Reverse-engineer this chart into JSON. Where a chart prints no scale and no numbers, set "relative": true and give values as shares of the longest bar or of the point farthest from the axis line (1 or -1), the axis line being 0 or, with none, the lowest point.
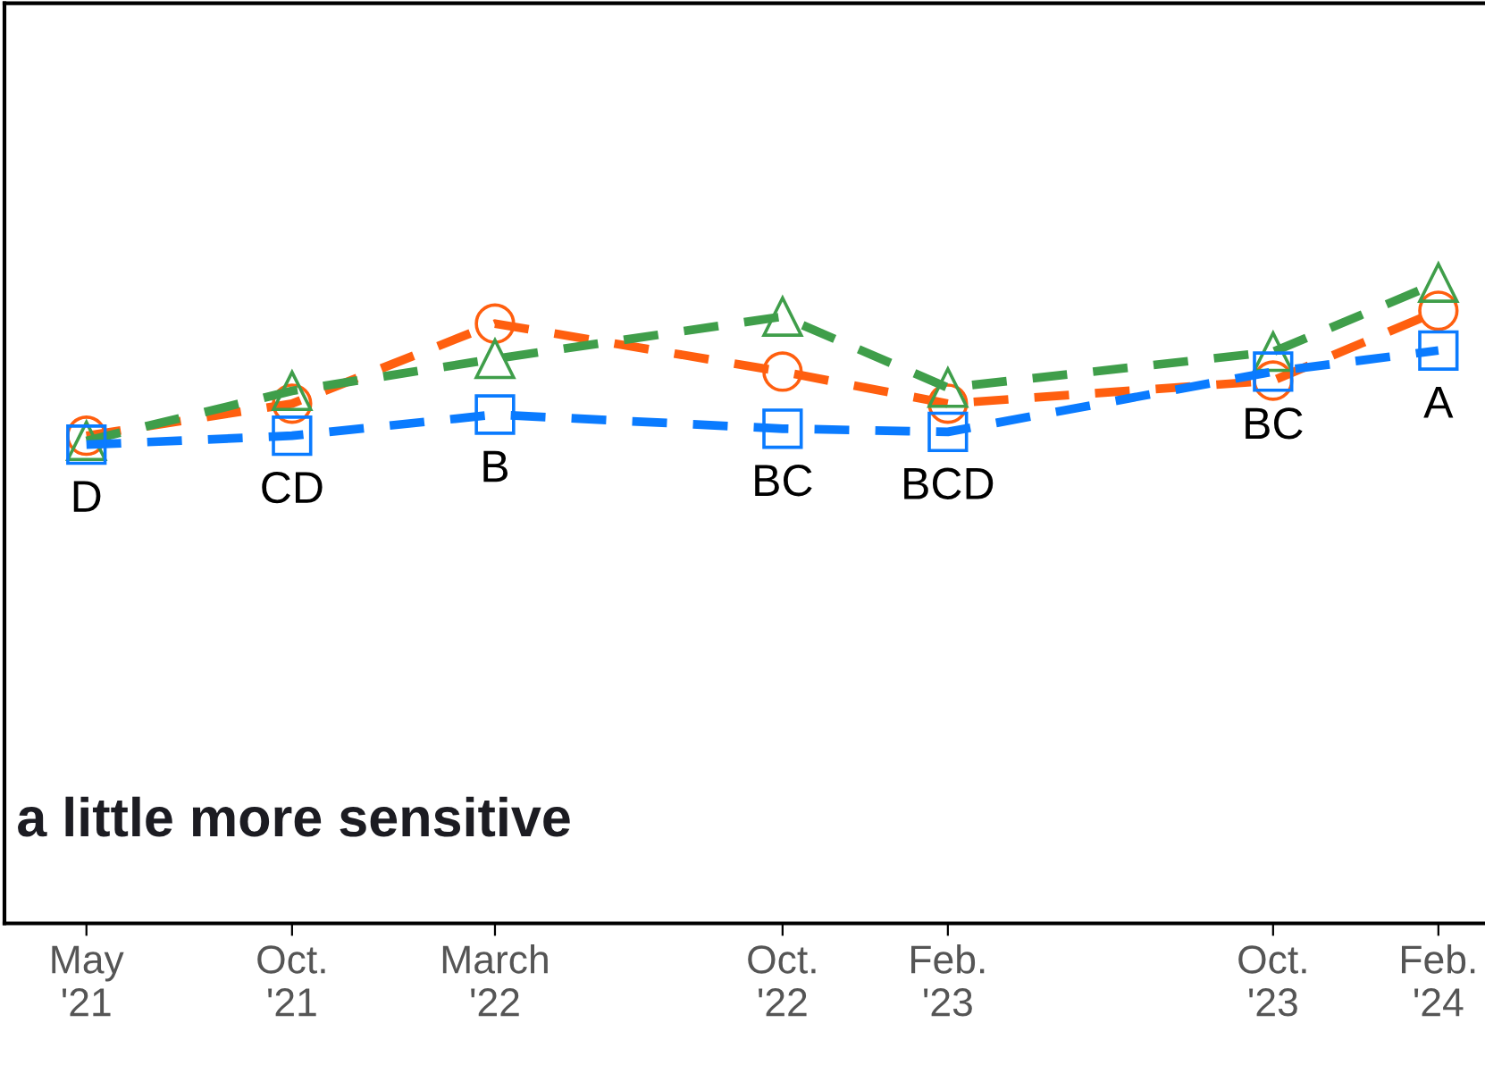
{
  "chart_data": {
    "type": "line",
    "relative": true,
    "line_style": "dashed",
    "legend": false,
    "grid": false,
    "tick_labels": "x",
    "x": [
      "2021-05",
      "2021-10",
      "2022-03",
      "2022-10",
      "2023-02",
      "2023-10",
      "2024-02"
    ],
    "xlim": [
      "2021-03",
      "2024-03-10"
    ],
    "xticks": [
      {
        "value": "2021-05",
        "label": "May\n'21"
      },
      {
        "value": "2021-10",
        "label": "Oct.\n'21"
      },
      {
        "value": "2022-03",
        "label": "March\n'22"
      },
      {
        "value": "2022-10",
        "label": "Oct.\n'22"
      },
      {
        "value": "2023-02",
        "label": "Feb.\n'23"
      },
      {
        "value": "2023-10",
        "label": "Oct.\n'23"
      },
      {
        "value": "2024-02",
        "label": "Feb.\n'24"
      }
    ],
    "series": [
      {
        "color": "#ff5f0f",
        "marker": "circle",
        "values": [
          0.761,
          0.811,
          0.936,
          0.861,
          0.811,
          0.847,
          0.956
        ]
      },
      {
        "color": "#3f9e4a",
        "marker": "triangle",
        "values": [
          0.753,
          0.831,
          0.881,
          0.947,
          0.836,
          0.892,
          1
        ]
      },
      {
        "color": "#0a7bff",
        "marker": "square",
        "values": [
          0.747,
          0.761,
          0.794,
          0.772,
          0.767,
          0.861,
          0.894
        ]
      }
    ],
    "annotations": [
      {
        "text": "D",
        "x": "2021-05",
        "y": 0.747
      },
      {
        "text": "CD",
        "x": "2021-10",
        "y": 0.761
      },
      {
        "text": "B",
        "x": "2022-03",
        "y": 0.794
      },
      {
        "text": "BC",
        "x": "2022-10",
        "y": 0.772
      },
      {
        "text": "BCD",
        "x": "2023-02",
        "y": 0.767
      },
      {
        "text": "BC",
        "x": "2023-10",
        "y": 0.861
      },
      {
        "text": "A",
        "x": "2024-02",
        "y": 0.894
      },
      "a little more sensitive"
    ]
  }
}
